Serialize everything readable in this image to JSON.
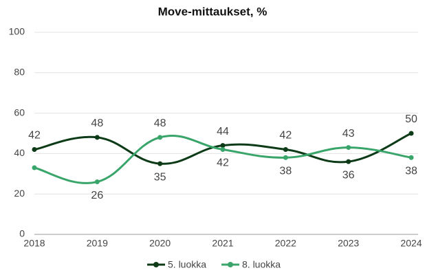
{
  "chart_data": {
    "type": "line",
    "title": "Move-mittaukset, %",
    "categories": [
      "2018",
      "2019",
      "2020",
      "2021",
      "2022",
      "2023",
      "2024"
    ],
    "series": [
      {
        "name": "5. luokka",
        "color": "#0d3b17",
        "values": [
          42,
          48,
          35,
          44,
          42,
          36,
          50
        ]
      },
      {
        "name": "8. luokka",
        "color": "#3aa56a",
        "values": [
          33,
          26,
          48,
          42,
          38,
          43,
          38
        ],
        "value_labels": [
          null,
          26,
          48,
          42,
          38,
          43,
          38
        ]
      }
    ],
    "ylim": [
      0,
      100
    ],
    "yticks": [
      0,
      20,
      40,
      60,
      80,
      100
    ],
    "grid": true,
    "legend": "bottom"
  }
}
